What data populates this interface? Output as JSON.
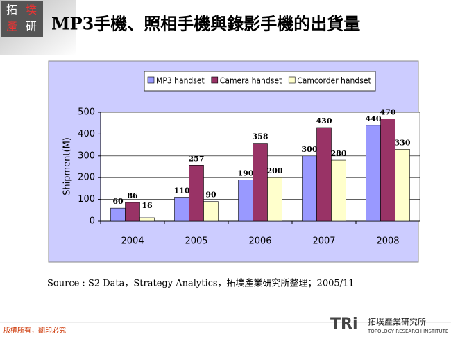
{
  "chart_data": {
    "type": "bar",
    "title": "MP3手機、照相手機與錄影手機的出貨量",
    "ylabel": "Shipment(M)",
    "categories": [
      "2004",
      "2005",
      "2006",
      "2007",
      "2008"
    ],
    "series": [
      {
        "name": "MP3 handset",
        "color": "#9999ff",
        "values": [
          60,
          110,
          190,
          300,
          440
        ]
      },
      {
        "name": "Camera handset",
        "color": "#993366",
        "values": [
          86,
          257,
          358,
          430,
          470
        ]
      },
      {
        "name": "Camcorder handset",
        "color": "#ffffcc",
        "values": [
          16,
          90,
          200,
          280,
          330
        ]
      }
    ],
    "ylim": [
      0,
      500
    ],
    "yticks": [
      0,
      100,
      200,
      300,
      400,
      500
    ],
    "grid": true,
    "legend": "top"
  },
  "source": "Source : S2 Data，Strategy Analytics，拓墣產業研究所整理；2005/11",
  "logo": {
    "chars": [
      "拓",
      "墣",
      "產",
      "研"
    ]
  },
  "footer": "版權所有，翻印必究",
  "brand": {
    "mark": "TRi",
    "name": "拓墣產業研究所",
    "english": "TOPOLOGY RESEARCH INSTITUTE"
  }
}
